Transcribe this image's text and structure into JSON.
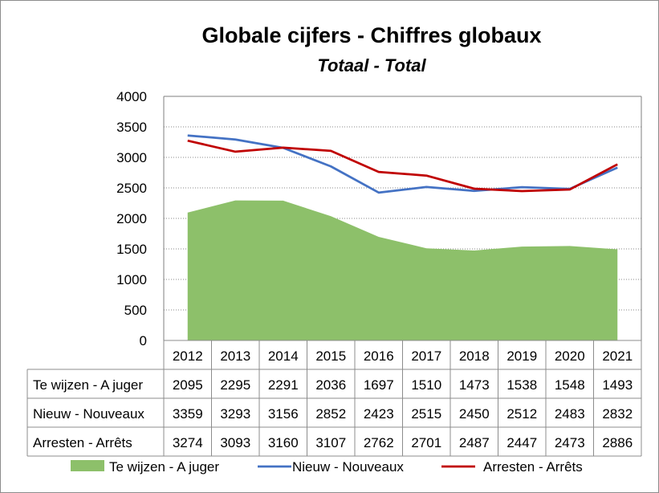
{
  "chart_data": {
    "type": "line",
    "title": "Globale cijfers - Chiffres globaux",
    "subtitle": "Totaal - Total",
    "categories": [
      "2012",
      "2013",
      "2014",
      "2015",
      "2016",
      "2017",
      "2018",
      "2019",
      "2020",
      "2021"
    ],
    "ylim": [
      0,
      4000
    ],
    "yticks": [
      0,
      500,
      1000,
      1500,
      2000,
      2500,
      3000,
      3500,
      4000
    ],
    "grid": true,
    "legend_position": "bottom",
    "series": [
      {
        "name": "Te wijzen - A juger",
        "type": "area",
        "color": "#8dc06a",
        "values": [
          2095,
          2295,
          2291,
          2036,
          1697,
          1510,
          1473,
          1538,
          1548,
          1493
        ]
      },
      {
        "name": "Nieuw - Nouveaux",
        "type": "line",
        "color": "#4472c4",
        "values": [
          3359,
          3293,
          3156,
          2852,
          2423,
          2515,
          2450,
          2512,
          2483,
          2832
        ]
      },
      {
        "name": "Arresten - Arrêts",
        "type": "line",
        "color": "#c00000",
        "values": [
          3274,
          3093,
          3160,
          3107,
          2762,
          2701,
          2487,
          2447,
          2473,
          2886
        ]
      }
    ]
  }
}
